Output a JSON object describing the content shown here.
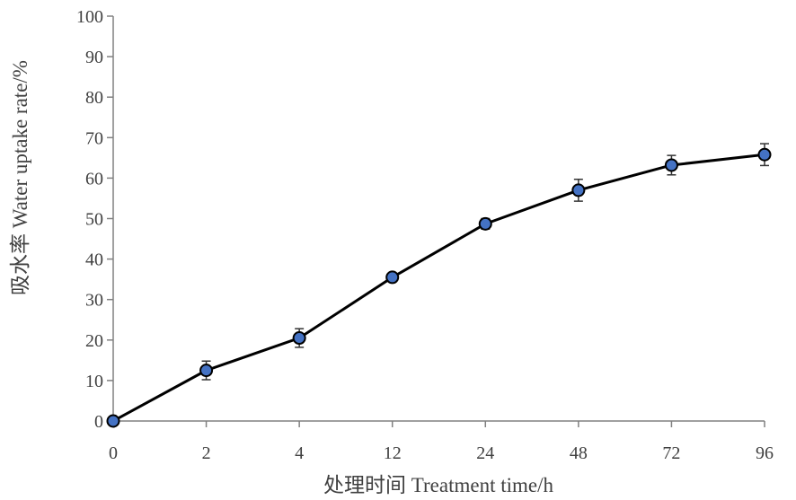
{
  "chart_data": {
    "type": "line",
    "title": "",
    "xlabel": "处理时间 Treatment time/h",
    "ylabel": "吸水率 Water uptake rate/%",
    "categories": [
      "0",
      "2",
      "4",
      "12",
      "24",
      "48",
      "72",
      "96"
    ],
    "ylim": [
      0,
      100
    ],
    "yticks": [
      0,
      10,
      20,
      30,
      40,
      50,
      60,
      70,
      80,
      90,
      100
    ],
    "grid": false,
    "legend": "none",
    "series": [
      {
        "values": [
          0,
          12.5,
          20.5,
          35.5,
          48.7,
          57.0,
          63.2,
          65.8
        ],
        "errors": [
          0,
          2.3,
          2.3,
          1.0,
          1.3,
          2.7,
          2.4,
          2.7
        ],
        "line_color": "#000000",
        "marker_color": "#4472C4",
        "marker_edge": "#000000",
        "marker": "circle"
      }
    ]
  }
}
